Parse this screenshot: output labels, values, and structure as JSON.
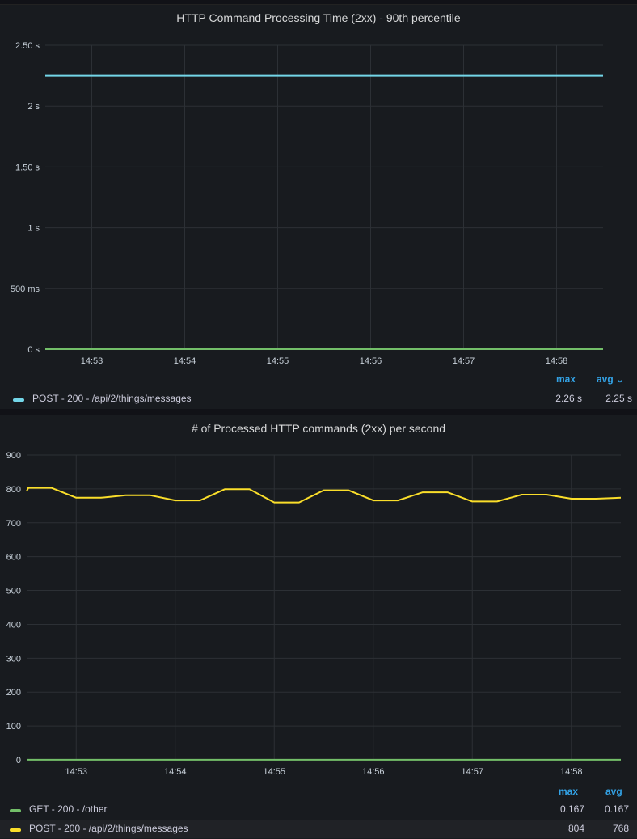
{
  "chart_data": [
    {
      "type": "line",
      "title": "HTTP Command Processing Time (2xx) - 90th percentile",
      "x_ticks": [
        "14:53",
        "14:54",
        "14:55",
        "14:56",
        "14:57",
        "14:58"
      ],
      "y_ticks": [
        "0 s",
        "500 ms",
        "1 s",
        "1.50 s",
        "2 s",
        "2.50 s"
      ],
      "ylim": [
        0,
        2.5
      ],
      "series": [
        {
          "name": "POST - 200 - /api/2/things/messages",
          "color": "#73d6e8",
          "x": [
            "14:52:30",
            "14:58:30"
          ],
          "values": [
            2.25,
            2.25
          ]
        },
        {
          "name": "",
          "color": "#73bf69",
          "x": [
            "14:52:30",
            "14:58:30"
          ],
          "values": [
            0,
            0
          ]
        }
      ],
      "legend": {
        "headers": [
          "max",
          "avg"
        ],
        "rows": [
          {
            "name": "POST - 200 - /api/2/things/messages",
            "color": "#73d6e8",
            "max": "2.26 s",
            "avg": "2.25 s"
          }
        ]
      }
    },
    {
      "type": "line",
      "title": "# of Processed HTTP commands (2xx) per second",
      "x_ticks": [
        "14:53",
        "14:54",
        "14:55",
        "14:56",
        "14:57",
        "14:58"
      ],
      "y_ticks": [
        "0",
        "100",
        "200",
        "300",
        "400",
        "500",
        "600",
        "700",
        "800",
        "900"
      ],
      "ylim": [
        0,
        900
      ],
      "series": [
        {
          "name": "GET - 200 - /other",
          "color": "#73bf69",
          "x": [
            "14:52:30",
            "14:58:30"
          ],
          "values": [
            0.167,
            0.167
          ]
        },
        {
          "name": "POST - 200 - /api/2/things/messages",
          "color": "#fade2a",
          "x": [
            "14:52:30",
            "14:52:31",
            "14:52:45",
            "14:53:00",
            "14:53:15",
            "14:53:30",
            "14:53:45",
            "14:54:00",
            "14:54:15",
            "14:54:30",
            "14:54:45",
            "14:55:00",
            "14:55:15",
            "14:55:30",
            "14:55:45",
            "14:56:00",
            "14:56:15",
            "14:56:30",
            "14:56:45",
            "14:57:00",
            "14:57:15",
            "14:57:30",
            "14:57:45",
            "14:58:00",
            "14:58:15",
            "14:58:30"
          ],
          "values": [
            793,
            803,
            803,
            774,
            774,
            781,
            781,
            766,
            766,
            799,
            799,
            760,
            760,
            796,
            796,
            766,
            766,
            790,
            790,
            763,
            763,
            783,
            783,
            771,
            771,
            774
          ]
        }
      ],
      "legend": {
        "headers": [
          "max",
          "avg"
        ],
        "rows": [
          {
            "name": "GET - 200 - /other",
            "color": "#73bf69",
            "max": "0.167",
            "avg": "0.167"
          },
          {
            "name": "POST - 200 - /api/2/things/messages",
            "color": "#fade2a",
            "max": "804",
            "avg": "768"
          }
        ]
      }
    }
  ]
}
